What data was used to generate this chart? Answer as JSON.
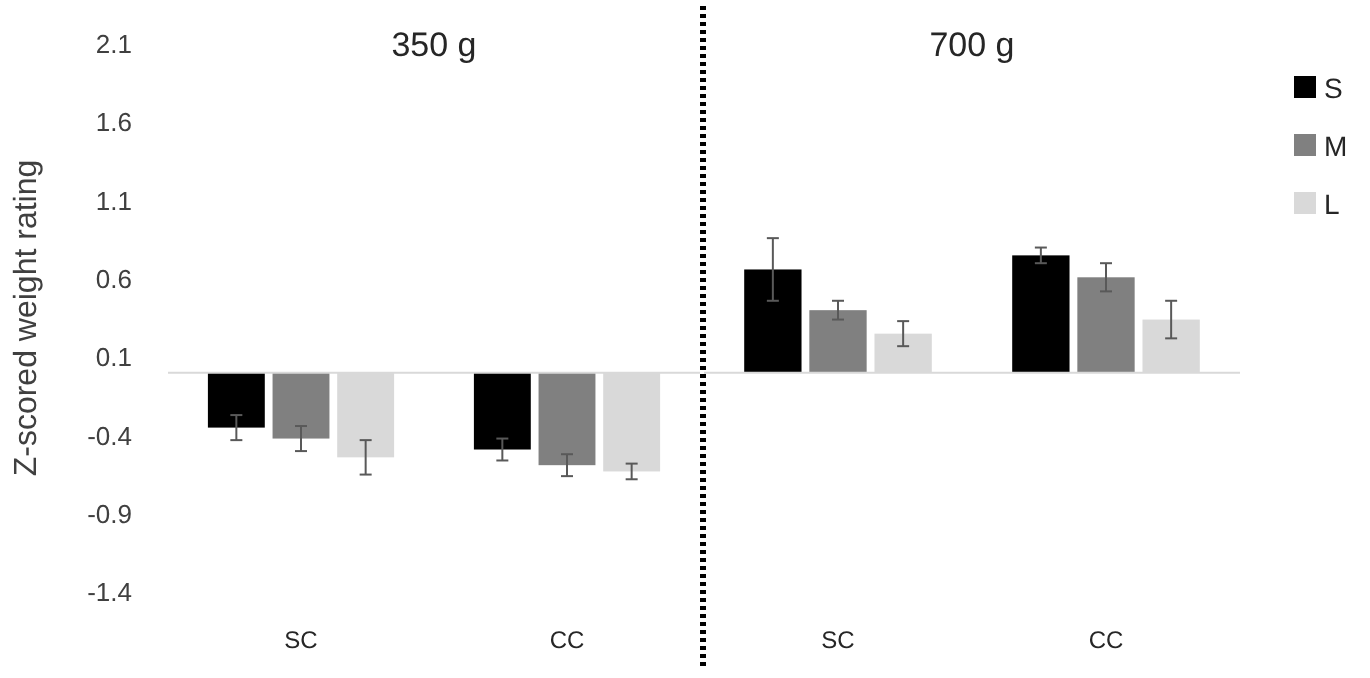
{
  "chart_data": [
    {
      "type": "bar",
      "title": "350 g",
      "ylabel": "Z-scored weight rating",
      "categories": [
        "SC",
        "CC"
      ],
      "ylim": [
        -1.4,
        2.1
      ],
      "yticks": [
        -1.4,
        -0.9,
        -0.4,
        0.1,
        0.6,
        1.1,
        1.6,
        2.1
      ],
      "grid": false,
      "legend": false,
      "series": [
        {
          "color": "#000000",
          "values": [
            -0.35,
            -0.49
          ],
          "errors": [
            0.08,
            0.07
          ]
        },
        {
          "color": "#808080",
          "values": [
            -0.42,
            -0.59
          ],
          "errors": [
            0.08,
            0.07
          ]
        },
        {
          "color": "#d9d9d9",
          "values": [
            -0.54,
            -0.63
          ],
          "errors": [
            0.11,
            0.05
          ]
        }
      ]
    },
    {
      "type": "bar",
      "title": "700 g",
      "categories": [
        "SC",
        "CC"
      ],
      "ylim": [
        -1.4,
        2.1
      ],
      "yticks": [
        -1.4,
        -0.9,
        -0.4,
        0.1,
        0.6,
        1.1,
        1.6,
        2.1
      ],
      "tick_labels": "x",
      "grid": false,
      "legend": "right",
      "series": [
        {
          "name": "S",
          "color": "#000000",
          "values": [
            0.66,
            0.75
          ],
          "errors": [
            0.2,
            0.05
          ]
        },
        {
          "name": "M",
          "color": "#808080",
          "values": [
            0.4,
            0.61
          ],
          "errors": [
            0.06,
            0.09
          ]
        },
        {
          "name": "L",
          "color": "#d9d9d9",
          "values": [
            0.25,
            0.34
          ],
          "errors": [
            0.08,
            0.12
          ]
        }
      ]
    }
  ]
}
